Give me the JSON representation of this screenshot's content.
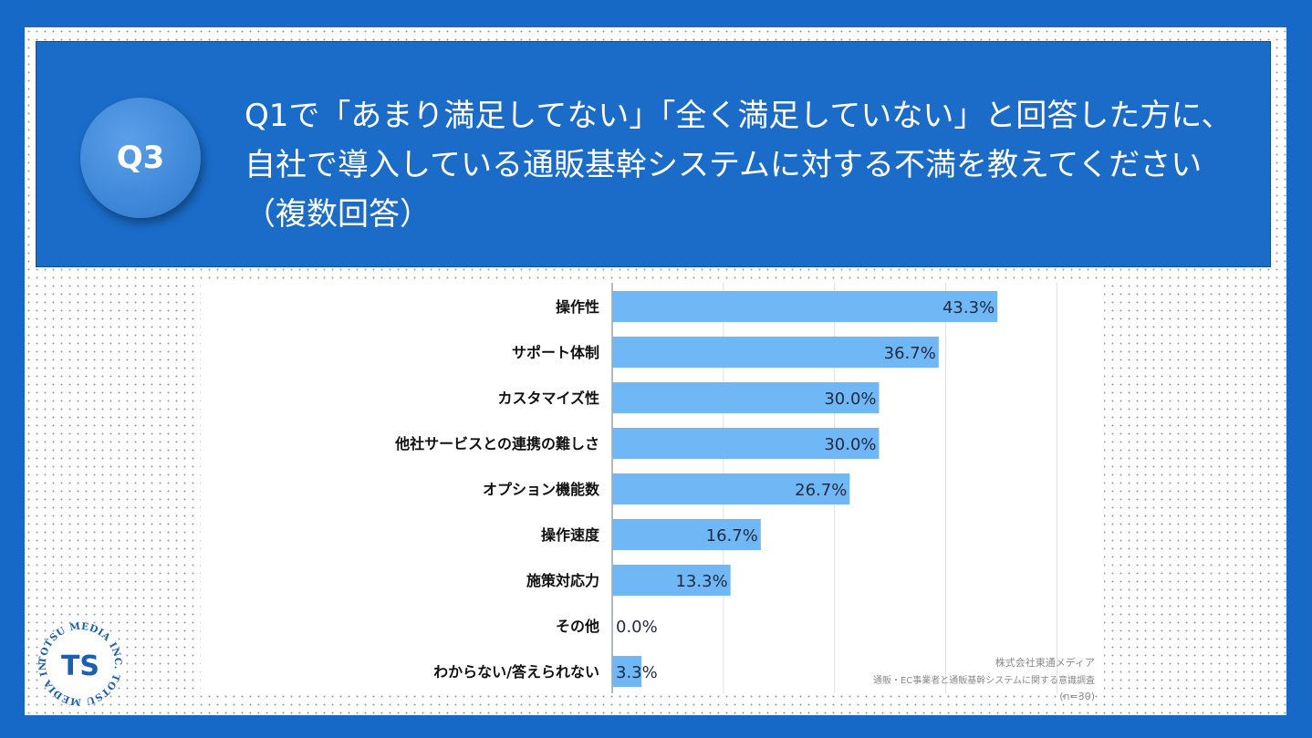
{
  "badge": "Q3",
  "question": "Q1で「あまり満足してない」「全く満足していない」と回答した方に、自社で導入している通販基幹システムに対する不満を教えてください（複数回答）",
  "chart_data": {
    "type": "bar",
    "orientation": "horizontal",
    "categories": [
      "操作性",
      "サポート体制",
      "カスタマイズ性",
      "他社サービスとの連携の難しさ",
      "オプション機能数",
      "操作速度",
      "施策対応力",
      "その他",
      "わからない/答えられない"
    ],
    "values": [
      43.3,
      36.7,
      30.0,
      30.0,
      26.7,
      16.7,
      13.3,
      0.0,
      3.3
    ],
    "value_labels": [
      "43.3%",
      "36.7%",
      "30.0%",
      "30.0%",
      "26.7%",
      "16.7%",
      "13.3%",
      "0.0%",
      "3.3%"
    ],
    "xlim": [
      0,
      50
    ],
    "bar_color": "#6fb8f5",
    "grid": true
  },
  "credit": {
    "company": "株式会社東通メディア",
    "survey": "通販・EC事業者と通販基幹システムに関する意識調査",
    "sample": "(n=30)"
  },
  "logo": {
    "text": "TOTSU MEDIA INC. TOTSU MEDIA INC.",
    "mark": "TS"
  }
}
